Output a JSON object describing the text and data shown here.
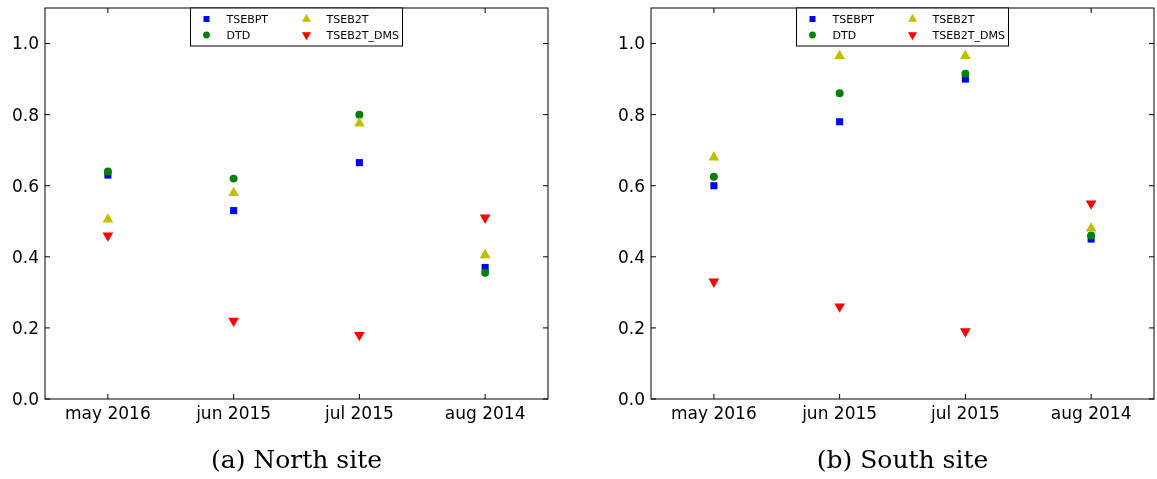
{
  "chart_data": [
    {
      "type": "scatter",
      "title": "(a) North site",
      "categories": [
        "may 2016",
        "jun 2015",
        "jul 2015",
        "aug 2014"
      ],
      "ylim": [
        0,
        1.1
      ],
      "yticks": [
        {
          "value": 0,
          "label": "0.0"
        },
        {
          "value": 0.2,
          "label": "0.2"
        },
        {
          "value": 0.4,
          "label": "0.4"
        },
        {
          "value": 0.6,
          "label": "0.6"
        },
        {
          "value": 0.8,
          "label": "0.8"
        },
        {
          "value": 1.0,
          "label": "1.0"
        }
      ],
      "legend": "top",
      "grid": false,
      "series": [
        {
          "name": "TSEBPT",
          "color": "#0000ff",
          "marker": "square",
          "values": [
            0.63,
            0.53,
            0.665,
            0.37
          ]
        },
        {
          "name": "DTD",
          "color": "#008000",
          "marker": "circle",
          "values": [
            0.64,
            0.62,
            0.8,
            0.355
          ]
        },
        {
          "name": "TSEB2T",
          "color": "#bfbf00",
          "marker": "triangle",
          "values": [
            0.505,
            0.58,
            0.775,
            0.405
          ]
        },
        {
          "name": "TSEB2T_DMS",
          "color": "#ff0000",
          "marker": "triangle-down",
          "values": [
            0.46,
            0.22,
            0.18,
            0.51
          ]
        }
      ]
    },
    {
      "type": "scatter",
      "title": "(b) South site",
      "categories": [
        "may 2016",
        "jun 2015",
        "jul 2015",
        "aug 2014"
      ],
      "ylim": [
        0,
        1.1
      ],
      "yticks": [
        {
          "value": 0,
          "label": "0.0"
        },
        {
          "value": 0.2,
          "label": "0.2"
        },
        {
          "value": 0.4,
          "label": "0.4"
        },
        {
          "value": 0.6,
          "label": "0.6"
        },
        {
          "value": 0.8,
          "label": "0.8"
        },
        {
          "value": 1.0,
          "label": "1.0"
        }
      ],
      "legend": "top",
      "grid": false,
      "series": [
        {
          "name": "TSEBPT",
          "color": "#0000ff",
          "marker": "square",
          "values": [
            0.6,
            0.78,
            0.9,
            0.45
          ]
        },
        {
          "name": "DTD",
          "color": "#008000",
          "marker": "circle",
          "values": [
            0.625,
            0.86,
            0.915,
            0.46
          ]
        },
        {
          "name": "TSEB2T",
          "color": "#bfbf00",
          "marker": "triangle",
          "values": [
            0.68,
            0.965,
            0.965,
            0.48
          ]
        },
        {
          "name": "TSEB2T_DMS",
          "color": "#ff0000",
          "marker": "triangle-down",
          "values": [
            0.33,
            0.26,
            0.19,
            0.55
          ]
        }
      ]
    }
  ]
}
